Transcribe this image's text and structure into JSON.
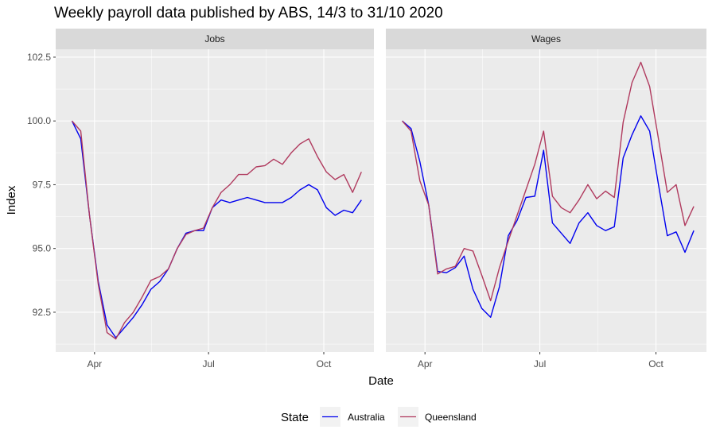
{
  "chart_data": {
    "type": "line",
    "title": "Weekly payroll data published by ABS, 14/3 to 31/10 2020",
    "xlabel": "Date",
    "ylabel": "Index",
    "ylim": [
      90.94,
      102.81
    ],
    "xlim": [
      "2020-03-01",
      "2020-11-10"
    ],
    "grid": true,
    "y_ticks": [
      92.5,
      95.0,
      97.5,
      100.0,
      102.5
    ],
    "y_tick_labels": [
      "92.5",
      "95.0",
      "97.5",
      "100.0",
      "102.5"
    ],
    "x_ticks": [
      "2020-04-01",
      "2020-07-01",
      "2020-10-01"
    ],
    "x_tick_labels": [
      "Apr",
      "Jul",
      "Oct"
    ],
    "legend": {
      "title": "State",
      "position": "bottom",
      "entries": [
        "Australia",
        "Queensland"
      ]
    },
    "colors": {
      "Australia": "#0000ee",
      "Queensland": "#b03a5e"
    },
    "x": [
      "2020-03-14",
      "2020-03-21",
      "2020-03-28",
      "2020-04-04",
      "2020-04-11",
      "2020-04-18",
      "2020-04-25",
      "2020-05-02",
      "2020-05-09",
      "2020-05-16",
      "2020-05-23",
      "2020-05-30",
      "2020-06-06",
      "2020-06-13",
      "2020-06-20",
      "2020-06-27",
      "2020-07-04",
      "2020-07-11",
      "2020-07-18",
      "2020-07-25",
      "2020-08-01",
      "2020-08-08",
      "2020-08-15",
      "2020-08-22",
      "2020-08-29",
      "2020-09-05",
      "2020-09-12",
      "2020-09-19",
      "2020-09-26",
      "2020-10-03",
      "2020-10-10",
      "2020-10-17",
      "2020-10-24",
      "2020-10-31"
    ],
    "facets": [
      {
        "name": "Jobs",
        "series": [
          {
            "name": "Australia",
            "values": [
              100.0,
              99.3,
              96.3,
              93.7,
              92.0,
              91.5,
              91.9,
              92.3,
              92.8,
              93.4,
              93.7,
              94.2,
              95.0,
              95.6,
              95.7,
              95.7,
              96.6,
              96.9,
              96.8,
              96.9,
              97.0,
              96.9,
              96.8,
              96.8,
              96.8,
              97.0,
              97.3,
              97.5,
              97.3,
              96.6,
              96.3,
              96.5,
              96.4,
              96.9
            ]
          },
          {
            "name": "Queensland",
            "values": [
              100.0,
              99.6,
              96.3,
              93.6,
              91.7,
              91.45,
              92.1,
              92.5,
              93.1,
              93.75,
              93.9,
              94.2,
              95.0,
              95.55,
              95.7,
              95.8,
              96.6,
              97.2,
              97.5,
              97.9,
              97.9,
              98.2,
              98.25,
              98.5,
              98.3,
              98.75,
              99.1,
              99.3,
              98.6,
              98.0,
              97.7,
              97.9,
              97.2,
              98.0
            ]
          }
        ]
      },
      {
        "name": "Wages",
        "series": [
          {
            "name": "Australia",
            "values": [
              100.0,
              99.7,
              98.4,
              96.7,
              94.1,
              94.05,
              94.25,
              94.7,
              93.4,
              92.65,
              92.3,
              93.5,
              95.5,
              96.1,
              97.0,
              97.05,
              98.85,
              96.0,
              95.6,
              95.2,
              96.0,
              96.4,
              95.9,
              95.7,
              95.85,
              98.55,
              99.45,
              100.2,
              99.6,
              97.5,
              95.5,
              95.65,
              94.85,
              95.7
            ]
          },
          {
            "name": "Queensland",
            "values": [
              100.0,
              99.6,
              97.65,
              96.7,
              94.0,
              94.2,
              94.3,
              95.0,
              94.9,
              93.95,
              92.95,
              94.25,
              95.3,
              96.3,
              97.3,
              98.3,
              99.6,
              97.05,
              96.6,
              96.4,
              96.9,
              97.5,
              96.95,
              97.25,
              97.0,
              99.95,
              101.5,
              102.3,
              101.35,
              99.3,
              97.2,
              97.5,
              95.9,
              96.65
            ]
          }
        ]
      }
    ]
  }
}
